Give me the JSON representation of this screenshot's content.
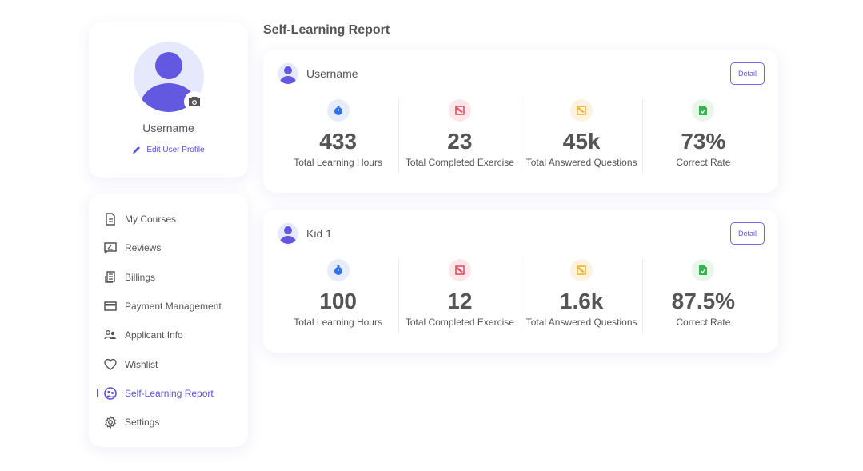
{
  "profile": {
    "name": "Username",
    "edit_label": "Edit User Profile"
  },
  "nav": {
    "items": [
      {
        "label": "My Courses",
        "icon": "document-icon"
      },
      {
        "label": "Reviews",
        "icon": "review-icon"
      },
      {
        "label": "Billings",
        "icon": "receipt-icon"
      },
      {
        "label": "Payment Management",
        "icon": "credit-card-icon"
      },
      {
        "label": "Applicant Info",
        "icon": "users-icon"
      },
      {
        "label": "Wishlist",
        "icon": "heart-icon"
      },
      {
        "label": "Self-Learning Report",
        "icon": "report-icon",
        "active": true
      },
      {
        "label": "Settings",
        "icon": "gear-icon"
      }
    ]
  },
  "page": {
    "title": "Self-Learning Report"
  },
  "colors": {
    "accent": "#5b55d8",
    "hours": "#2f6fe8",
    "exercise": "#ee4b5c",
    "questions": "#f2b233",
    "correct": "#2eb84a"
  },
  "reports": [
    {
      "name": "Username",
      "detail_label": "Detail",
      "stats": [
        {
          "value": "433",
          "label": "Total Learning Hours"
        },
        {
          "value": "23",
          "label": "Total Completed Exercise"
        },
        {
          "value": "45k",
          "label": "Total Answered Questions"
        },
        {
          "value": "73%",
          "label": "Correct Rate"
        }
      ]
    },
    {
      "name": "Kid 1",
      "detail_label": "Detail",
      "stats": [
        {
          "value": "100",
          "label": "Total Learning Hours"
        },
        {
          "value": "12",
          "label": "Total Completed Exercise"
        },
        {
          "value": "1.6k",
          "label": "Total Answered Questions"
        },
        {
          "value": "87.5%",
          "label": "Correct Rate"
        }
      ]
    }
  ]
}
